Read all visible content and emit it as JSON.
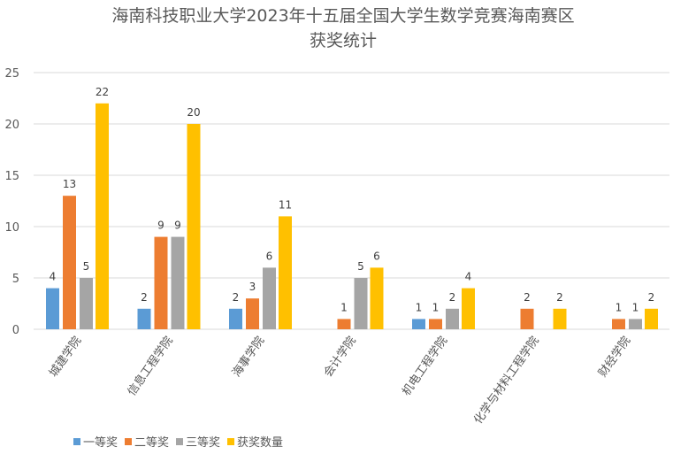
{
  "chart_data": {
    "type": "bar",
    "title": [
      "海南科技职业大学2023年十五届全国大学生数学竞赛海南赛区",
      "获奖统计"
    ],
    "categories": [
      "城建学院",
      "信息工程学院",
      "海事学院",
      "会计学院",
      "机电工程学院",
      "化学与材料工程学院",
      "财经学院"
    ],
    "series": [
      {
        "name": "一等奖",
        "color": "#5B9BD5",
        "values": [
          4,
          2,
          2,
          null,
          1,
          null,
          null
        ]
      },
      {
        "name": "二等奖",
        "color": "#ED7D31",
        "values": [
          13,
          9,
          3,
          1,
          1,
          2,
          1
        ]
      },
      {
        "name": "三等奖",
        "color": "#A5A5A5",
        "values": [
          5,
          9,
          6,
          5,
          2,
          null,
          1
        ]
      },
      {
        "name": "获奖数量",
        "color": "#FFC000",
        "values": [
          22,
          20,
          11,
          6,
          4,
          2,
          2
        ]
      }
    ],
    "ylim": [
      0,
      25
    ],
    "yticks": [
      0,
      5,
      10,
      15,
      20,
      25
    ],
    "grid": true,
    "legend": "bottom",
    "xlabel": "",
    "ylabel": ""
  }
}
